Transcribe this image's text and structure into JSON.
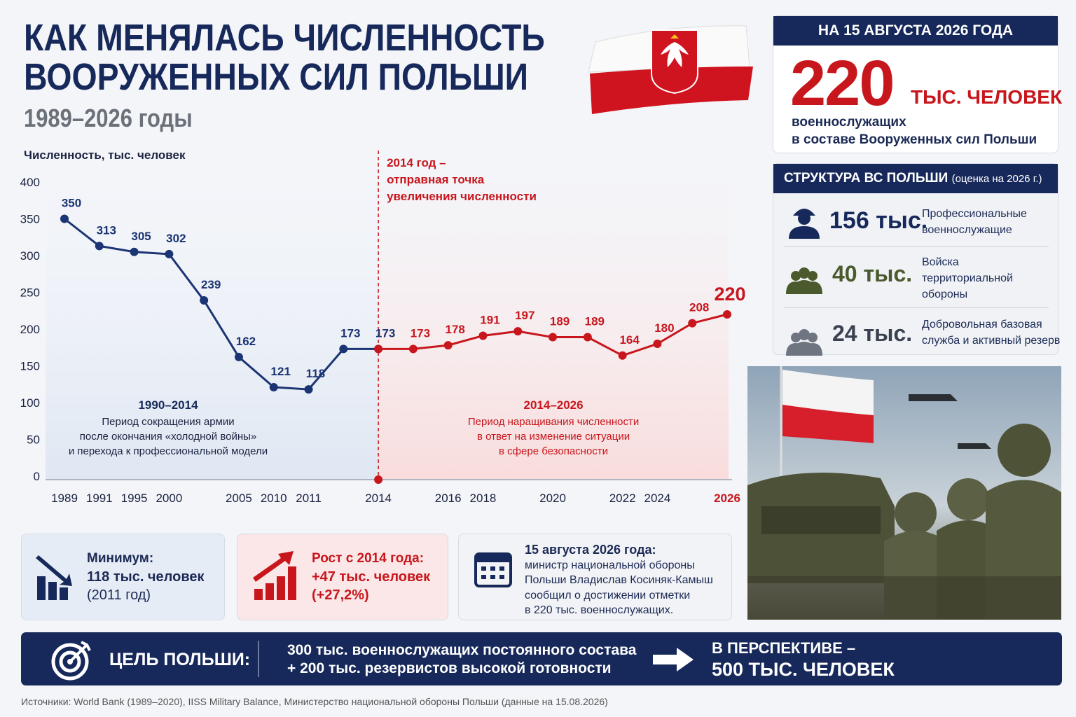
{
  "header": {
    "title": [
      "КАК МЕНЯЛАСЬ ЧИСЛЕННОСТЬ",
      "ВООРУЖЕННЫХ СИЛ ПОЛЬШИ"
    ],
    "subtitle": "1989–2026 годы"
  },
  "chart_data": {
    "type": "line",
    "y_label": "Численность, тыс. человек",
    "categories": [
      "1989",
      "1991",
      "1995",
      "2000",
      null,
      "2005",
      "2010",
      "2011",
      null,
      "2014",
      null,
      "2016",
      "2018",
      null,
      "2020",
      null,
      "2022",
      "2024",
      null,
      "2026"
    ],
    "series": [
      {
        "color": "#1b3473",
        "values": [
          350,
          313,
          305,
          302,
          239,
          162,
          121,
          118,
          173,
          173,
          null,
          null,
          null,
          null,
          null,
          null,
          null,
          null,
          null,
          null
        ]
      },
      {
        "color": "#c8161d",
        "values": [
          null,
          null,
          null,
          null,
          null,
          null,
          null,
          null,
          null,
          173,
          173,
          178,
          191,
          197,
          189,
          189,
          164,
          180,
          208,
          220
        ]
      }
    ],
    "ylim": [
      0,
      400
    ],
    "yticks": [
      0,
      50,
      100,
      150,
      200,
      250,
      300,
      350,
      400
    ],
    "grid": false,
    "annotation": [
      "2014 год –",
      "отправная точка",
      "увеличения численности"
    ],
    "periods": [
      {
        "title": "1990–2014",
        "lines": [
          "Период сокращения армии",
          "после окончания «холодной войны»",
          "и перехода к профессиональной модели"
        ]
      },
      {
        "title": "2014–2026",
        "lines": [
          "Период наращивания численности",
          "в ответ на изменение ситуации",
          "в сфере безопасности"
        ]
      }
    ]
  },
  "status": {
    "date": "НА 15 АВГУСТА 2026 ГОДА",
    "number": "220",
    "unit": "ТЫС. ЧЕЛОВЕК",
    "lines": [
      "военнослужащих",
      "в составе Вооруженных сил Польши"
    ]
  },
  "structure": {
    "title": "СТРУКТУРА ВС ПОЛЬШИ",
    "note": "(оценка на 2026 г.)",
    "items": [
      {
        "value": "156 тыс.",
        "lines": [
          "Профессиональные",
          "военнослужащие"
        ]
      },
      {
        "value": "40 тыс.",
        "lines": [
          "Войска",
          "территориальной",
          "обороны"
        ]
      },
      {
        "value": "24 тыс.",
        "lines": [
          "Добровольная базовая",
          "служба и активный резерв"
        ]
      }
    ]
  },
  "cards": [
    {
      "title": "Минимум:",
      "lines": [
        "118 тыс. человек",
        "(2011 год)"
      ]
    },
    {
      "title": "Рост с 2014 года:",
      "lines": [
        "+47 тыс. человек",
        "(+27,2%)"
      ]
    },
    {
      "title": "15 августа 2026 года:",
      "lines": [
        "министр национальной обороны",
        "Польши Владислав Косиняк-Камыш",
        "сообщил о достижении отметки",
        "в 220 тыс. военнослужащих."
      ]
    }
  ],
  "goal": {
    "label": "ЦЕЛЬ ПОЛЬШИ:",
    "lines": [
      "300 тыс. военнослужащих постоянного состава",
      "+ 200 тыс. резервистов высокой готовности"
    ],
    "outlook": [
      "В ПЕРСПЕКТИВЕ –",
      "500 ТЫС. ЧЕЛОВЕК"
    ]
  },
  "source": "Источники: World Bank (1989–2020), IISS Military Balance, Министерство национальной обороны Польши (данные на 15.08.2026)"
}
